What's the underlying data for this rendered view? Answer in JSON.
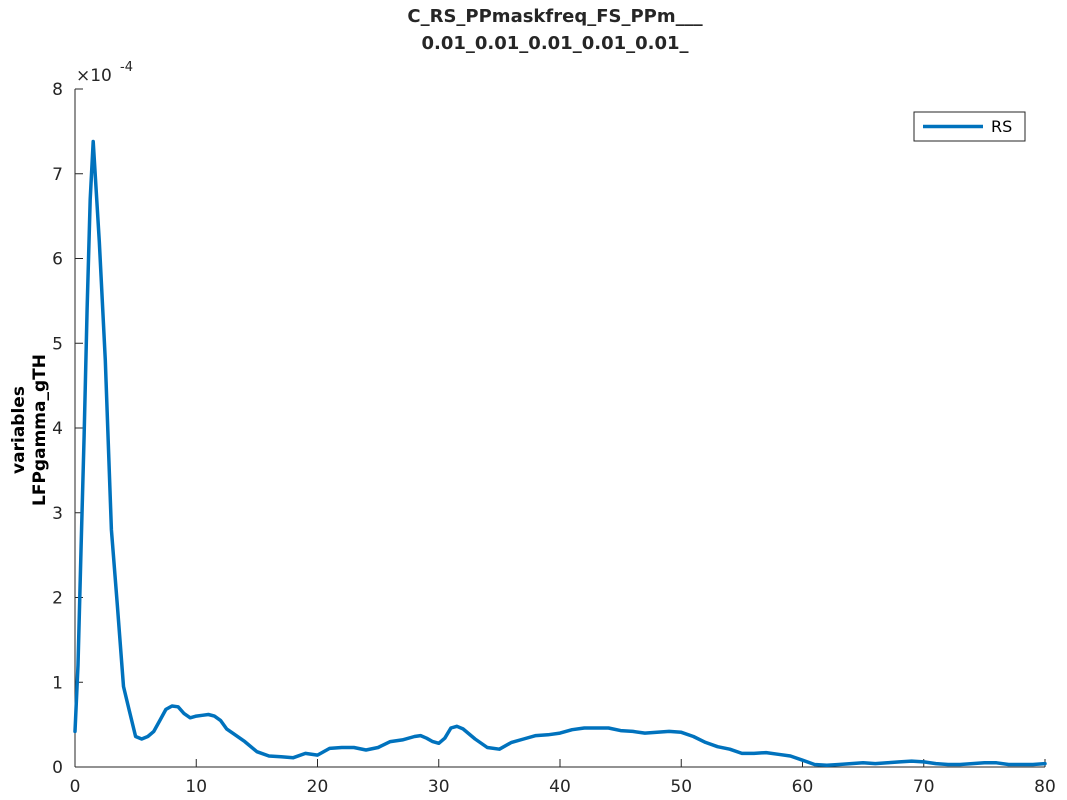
{
  "title_line1": "C_RS_PPmaskfreq_FS_PPm___",
  "title_line2": "0.01_0.01_0.01_0.01_0.01_",
  "chart_data": {
    "type": "line",
    "ylabel_line1": "variables",
    "ylabel_line2": "LFPgamma_gTH",
    "xlabel": "",
    "xlim": [
      0,
      80
    ],
    "ylim": [
      0,
      8
    ],
    "y_exponent_label": "×10",
    "y_exponent_power": "-4",
    "x_ticks": [
      0,
      10,
      20,
      30,
      40,
      50,
      60,
      70,
      80
    ],
    "y_ticks": [
      0,
      1,
      2,
      3,
      4,
      5,
      6,
      7,
      8
    ],
    "grid": false,
    "legend_position": "top-right",
    "series": [
      {
        "name": "RS",
        "color": "#0072BD",
        "x": [
          0,
          0.25,
          0.5,
          0.75,
          1.0,
          1.25,
          1.5,
          1.75,
          2.0,
          2.5,
          3.0,
          3.5,
          4.0,
          4.5,
          5.0,
          5.5,
          6.0,
          6.5,
          7.0,
          7.5,
          8.0,
          8.5,
          9.0,
          9.5,
          10.0,
          10.5,
          11.0,
          11.5,
          12.0,
          12.5,
          13.0,
          14.0,
          15.0,
          16.0,
          17.0,
          18.0,
          19.0,
          20.0,
          21.0,
          22.0,
          23.0,
          24.0,
          25.0,
          26.0,
          27.0,
          28.0,
          28.5,
          29.0,
          29.5,
          30.0,
          30.5,
          31.0,
          31.5,
          32.0,
          33.0,
          34.0,
          35.0,
          36.0,
          37.0,
          38.0,
          39.0,
          40.0,
          41.0,
          42.0,
          43.0,
          44.0,
          45.0,
          46.0,
          47.0,
          48.0,
          49.0,
          50.0,
          51.0,
          52.0,
          53.0,
          54.0,
          55.0,
          56.0,
          57.0,
          58.0,
          59.0,
          60.0,
          61.0,
          62.0,
          63.0,
          64.0,
          65.0,
          66.0,
          67.0,
          68.0,
          69.0,
          70.0,
          71.0,
          72.0,
          73.0,
          74.0,
          75.0,
          76.0,
          77.0,
          78.0,
          79.0,
          80.0
        ],
        "y": [
          0.42,
          1.2,
          2.6,
          3.9,
          5.4,
          6.7,
          7.38,
          6.8,
          6.2,
          4.8,
          2.8,
          1.9,
          0.95,
          0.65,
          0.36,
          0.33,
          0.36,
          0.42,
          0.55,
          0.68,
          0.72,
          0.71,
          0.63,
          0.58,
          0.6,
          0.61,
          0.62,
          0.6,
          0.55,
          0.45,
          0.4,
          0.3,
          0.18,
          0.13,
          0.12,
          0.11,
          0.16,
          0.14,
          0.22,
          0.23,
          0.23,
          0.2,
          0.23,
          0.3,
          0.32,
          0.36,
          0.37,
          0.34,
          0.3,
          0.28,
          0.34,
          0.46,
          0.48,
          0.45,
          0.33,
          0.23,
          0.21,
          0.29,
          0.33,
          0.37,
          0.38,
          0.4,
          0.44,
          0.46,
          0.46,
          0.46,
          0.43,
          0.42,
          0.4,
          0.41,
          0.42,
          0.41,
          0.36,
          0.29,
          0.24,
          0.21,
          0.16,
          0.16,
          0.17,
          0.15,
          0.13,
          0.08,
          0.03,
          0.02,
          0.03,
          0.04,
          0.05,
          0.04,
          0.05,
          0.06,
          0.07,
          0.06,
          0.04,
          0.03,
          0.03,
          0.04,
          0.05,
          0.05,
          0.03,
          0.03,
          0.03,
          0.04
        ]
      }
    ]
  }
}
